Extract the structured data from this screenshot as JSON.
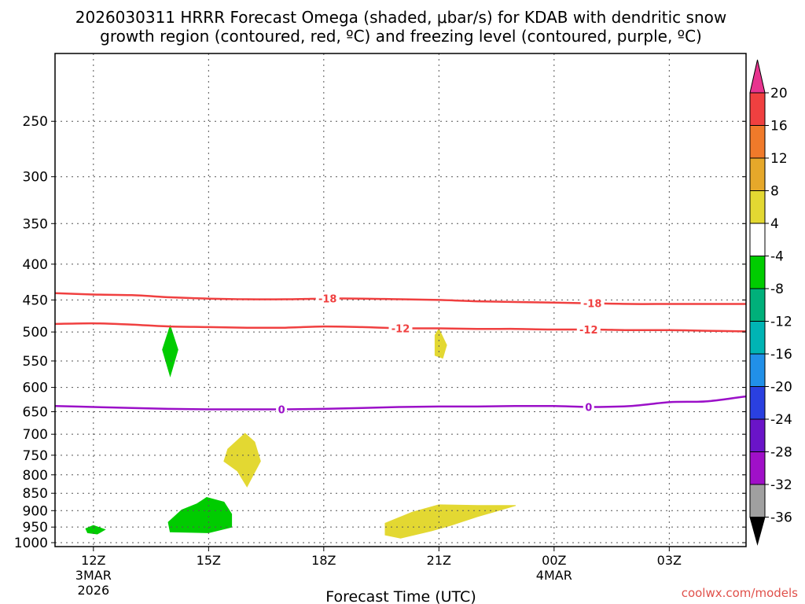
{
  "chart_data": {
    "type": "contour",
    "title_line1": "2026030311 HRRR Forecast Omega (shaded, μbar/s) for KDAB with dendritic snow",
    "title_line2": "growth region (contoured, red, ºC) and freezing level (contoured, purple, ºC)",
    "xlabel": "Forecast Time (UTC)",
    "credit": "coolwx.com/models",
    "x_range_hours": [
      11,
      29
    ],
    "y_axis": {
      "scale": "log-pressure",
      "range_hPa": [
        1013,
        200
      ],
      "ticks": [
        250,
        300,
        350,
        400,
        450,
        500,
        550,
        600,
        650,
        700,
        750,
        800,
        850,
        900,
        950,
        1000
      ]
    },
    "x_ticks": [
      {
        "hour": 12,
        "label": "12Z",
        "sub1": "3MAR",
        "sub2": "2026"
      },
      {
        "hour": 15,
        "label": "15Z",
        "sub1": "",
        "sub2": ""
      },
      {
        "hour": 18,
        "label": "18Z",
        "sub1": "",
        "sub2": ""
      },
      {
        "hour": 21,
        "label": "21Z",
        "sub1": "",
        "sub2": ""
      },
      {
        "hour": 24,
        "label": "00Z",
        "sub1": "4MAR",
        "sub2": ""
      },
      {
        "hour": 27,
        "label": "03Z",
        "sub1": "",
        "sub2": ""
      }
    ],
    "contours": [
      {
        "name": "-18C isotherm",
        "label": "-18",
        "color": "#f04040",
        "label_positions_hr": [
          18.1,
          25.0
        ],
        "points": [
          [
            11,
            440
          ],
          [
            12,
            442
          ],
          [
            13,
            443
          ],
          [
            14,
            446
          ],
          [
            15,
            448
          ],
          [
            16,
            449
          ],
          [
            17,
            449
          ],
          [
            18,
            448
          ],
          [
            19,
            448
          ],
          [
            20,
            449
          ],
          [
            21,
            450
          ],
          [
            22,
            452
          ],
          [
            23,
            453
          ],
          [
            24,
            454
          ],
          [
            25,
            455
          ],
          [
            26,
            456
          ],
          [
            27,
            456
          ],
          [
            28,
            456
          ],
          [
            29,
            456
          ]
        ]
      },
      {
        "name": "-12C isotherm",
        "label": "-12",
        "color": "#f04040",
        "label_positions_hr": [
          20.0,
          24.9
        ],
        "points": [
          [
            11,
            487
          ],
          [
            12,
            486
          ],
          [
            13,
            488
          ],
          [
            14,
            491
          ],
          [
            15,
            492
          ],
          [
            16,
            493
          ],
          [
            17,
            493
          ],
          [
            18,
            491
          ],
          [
            19,
            492
          ],
          [
            20,
            494
          ],
          [
            21,
            494
          ],
          [
            22,
            495
          ],
          [
            23,
            495
          ],
          [
            24,
            496
          ],
          [
            25,
            496
          ],
          [
            26,
            497
          ],
          [
            27,
            497
          ],
          [
            28,
            498
          ],
          [
            29,
            499
          ]
        ]
      },
      {
        "name": "0C freezing level",
        "label": "0",
        "color": "#9b10c8",
        "label_positions_hr": [
          16.9,
          24.9
        ],
        "points": [
          [
            11,
            638
          ],
          [
            12,
            640
          ],
          [
            13,
            642
          ],
          [
            14,
            644
          ],
          [
            15,
            645
          ],
          [
            16,
            645
          ],
          [
            17,
            645
          ],
          [
            18,
            644
          ],
          [
            19,
            642
          ],
          [
            20,
            640
          ],
          [
            21,
            639
          ],
          [
            22,
            639
          ],
          [
            23,
            638
          ],
          [
            24,
            638
          ],
          [
            25,
            640
          ],
          [
            26,
            638
          ],
          [
            27,
            630
          ],
          [
            28,
            628
          ],
          [
            29,
            618
          ]
        ]
      }
    ],
    "shaded_regions": [
      {
        "name": "omega -4 to -8 near 14Z 530hPa",
        "omega_range": [
          -8,
          -4
        ],
        "color": "#00cc00",
        "points": [
          [
            14.0,
            490
          ],
          [
            14.2,
            530
          ],
          [
            14.0,
            578
          ],
          [
            13.8,
            530
          ]
        ]
      },
      {
        "name": "omega 4 to 8 near 21Z 530hPa",
        "omega_range": [
          4,
          8
        ],
        "color": "#e3d832",
        "points": [
          [
            21.0,
            495
          ],
          [
            21.2,
            522
          ],
          [
            21.1,
            545
          ],
          [
            20.9,
            540
          ],
          [
            20.9,
            505
          ]
        ]
      },
      {
        "name": "omega 4 to 8 near 16Z 750hPa",
        "omega_range": [
          4,
          8
        ],
        "color": "#e3d832",
        "points": [
          [
            15.95,
            698
          ],
          [
            16.2,
            718
          ],
          [
            16.35,
            765
          ],
          [
            16.0,
            832
          ],
          [
            15.75,
            790
          ],
          [
            15.4,
            765
          ],
          [
            15.5,
            735
          ]
        ]
      },
      {
        "name": "omega -4 to -8 near 15Z 920hPa",
        "omega_range": [
          -8,
          -4
        ],
        "color": "#00cc00",
        "points": [
          [
            13.95,
            935
          ],
          [
            14.3,
            898
          ],
          [
            14.7,
            880
          ],
          [
            14.95,
            862
          ],
          [
            15.4,
            875
          ],
          [
            15.6,
            910
          ],
          [
            15.6,
            950
          ],
          [
            15.0,
            968
          ],
          [
            14.0,
            965
          ]
        ]
      },
      {
        "name": "omega -4 to -8 near 12Z 960hPa",
        "omega_range": [
          -8,
          -4
        ],
        "color": "#00cc00",
        "points": [
          [
            11.8,
            955
          ],
          [
            12.0,
            945
          ],
          [
            12.3,
            958
          ],
          [
            12.1,
            972
          ],
          [
            11.85,
            968
          ]
        ]
      },
      {
        "name": "omega 4 to 8 near 21Z 930hPa",
        "omega_range": [
          4,
          8
        ],
        "color": "#e3d832",
        "points": [
          [
            19.6,
            938
          ],
          [
            20.3,
            905
          ],
          [
            21.0,
            883
          ],
          [
            22.0,
            885
          ],
          [
            23.0,
            885
          ],
          [
            22.0,
            918
          ],
          [
            21.3,
            945
          ],
          [
            20.8,
            962
          ],
          [
            20.0,
            985
          ],
          [
            19.6,
            975
          ]
        ]
      }
    ],
    "ground": {
      "color": "#a0522d",
      "from_hPa": 1000,
      "to_hPa": 1013
    },
    "colorbar": {
      "labels": [
        "20",
        "16",
        "12",
        "8",
        "4",
        "-4",
        "-8",
        "-12",
        "-16",
        "-20",
        "-24",
        "-28",
        "-32",
        "-36"
      ],
      "colors": [
        "#e8348f",
        "#f04040",
        "#f07a2a",
        "#e6a82a",
        "#e3d832",
        "#ffffff",
        "#00cc00",
        "#00b07a",
        "#00b4b4",
        "#2190e8",
        "#2a40e0",
        "#6a14c8",
        "#a010c8",
        "#a0a0a0",
        "#000000"
      ]
    }
  }
}
